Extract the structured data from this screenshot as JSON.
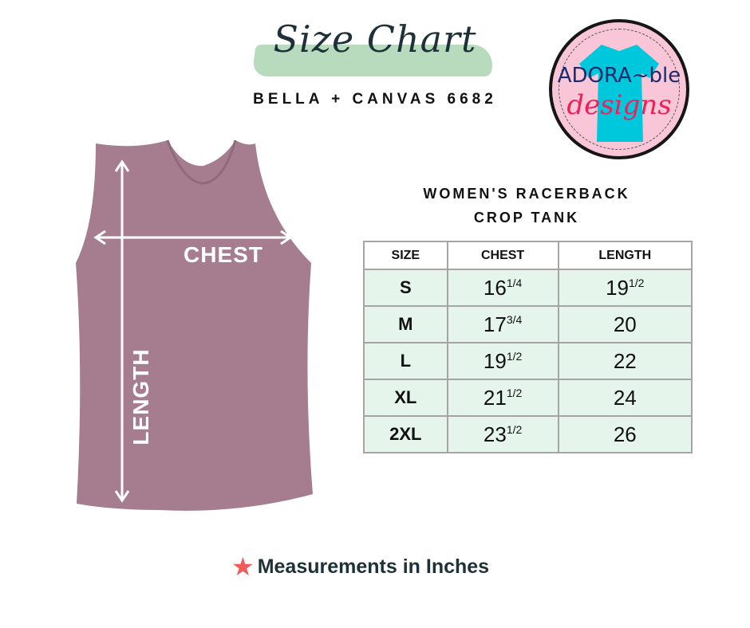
{
  "header": {
    "title": "Size Chart",
    "subtitle": "BELLA + CANVAS 6682"
  },
  "logo": {
    "line1": "ADORA~ble",
    "line2": "designs",
    "colors": {
      "background": "#f8c6d6",
      "shirt": "#00c8dc",
      "line1": "#1d2a6b",
      "line2": "#ef1f5a"
    }
  },
  "garment": {
    "color": "#a57d8f",
    "chest_label": "CHEST",
    "length_label": "LENGTH"
  },
  "table": {
    "title_line1": "WOMEN'S RACERBACK",
    "title_line2": "CROP TANK",
    "headers": [
      "SIZE",
      "CHEST",
      "LENGTH"
    ],
    "rows": [
      {
        "size": "S",
        "chest": "16",
        "chest_frac": "1/4",
        "length": "19",
        "length_frac": "1/2"
      },
      {
        "size": "M",
        "chest": "17",
        "chest_frac": "3/4",
        "length": "20",
        "length_frac": ""
      },
      {
        "size": "L",
        "chest": "19",
        "chest_frac": "1/2",
        "length": "22",
        "length_frac": ""
      },
      {
        "size": "XL",
        "chest": "21",
        "chest_frac": "1/2",
        "length": "24",
        "length_frac": ""
      },
      {
        "size": "2XL",
        "chest": "23",
        "chest_frac": "1/2",
        "length": "26",
        "length_frac": ""
      }
    ],
    "row_color": "#e6f5ec"
  },
  "footer": {
    "icon": "star-icon",
    "text": "Measurements in Inches",
    "star_color": "#f25a5a"
  }
}
